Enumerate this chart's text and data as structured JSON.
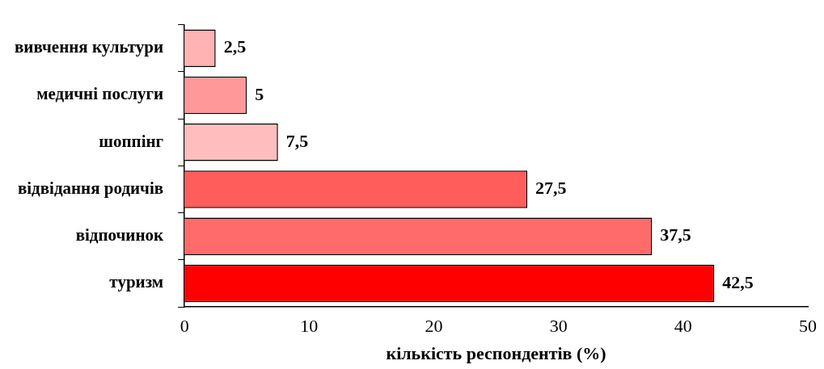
{
  "chart_data": {
    "type": "bar",
    "orientation": "horizontal",
    "xlabel": "кількість респондентів (%)",
    "categories": [
      "вивчення культури",
      "медичні послуги",
      "шоппінг",
      "відвідання родичів",
      "відпочинок",
      "туризм"
    ],
    "values": [
      2.5,
      5,
      7.5,
      27.5,
      37.5,
      42.5
    ],
    "value_labels": [
      "2,5",
      "5",
      "7,5",
      "27,5",
      "37,5",
      "42,5"
    ],
    "colors": [
      "#ffb3b3",
      "#ff9999",
      "#ffbdbd",
      "#ff5c5c",
      "#ff6b6b",
      "#ff0000"
    ],
    "xlim": [
      0,
      50
    ],
    "xticks": [
      0,
      10,
      20,
      30,
      40,
      50
    ]
  }
}
